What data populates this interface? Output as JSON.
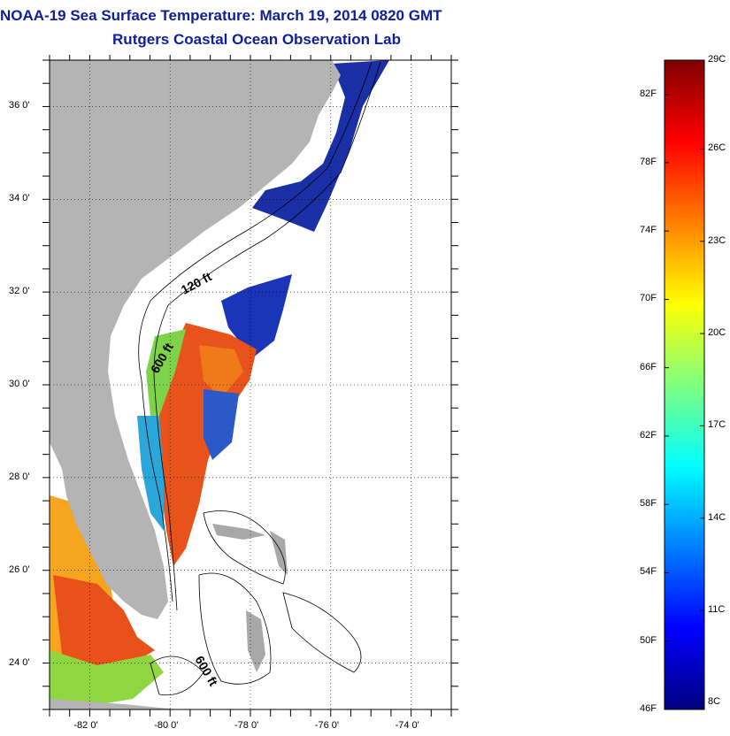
{
  "title": "NOAA-19 Sea Surface Temperature:  March 19, 2014 0820 GMT",
  "subtitle": "Rutgers Coastal Ocean Observation Lab",
  "map": {
    "lon_range": [
      -83,
      -73
    ],
    "lat_range": [
      23,
      37
    ],
    "lon_ticks": [
      {
        "value": -82,
        "label": "-82 0'"
      },
      {
        "value": -80,
        "label": "-80 0'"
      },
      {
        "value": -78,
        "label": "-78 0'"
      },
      {
        "value": -76,
        "label": "-76 0'"
      },
      {
        "value": -74,
        "label": "-74 0'"
      }
    ],
    "lat_ticks": [
      {
        "value": 36,
        "label": "36 0'"
      },
      {
        "value": 34,
        "label": "34 0'"
      },
      {
        "value": 32,
        "label": "32 0'"
      },
      {
        "value": 30,
        "label": "30 0'"
      },
      {
        "value": 28,
        "label": "28 0'"
      },
      {
        "value": 26,
        "label": "26 0'"
      },
      {
        "value": 24,
        "label": "24 0'"
      }
    ],
    "contour_labels": [
      "120 ft",
      "600 ft",
      "600 ft"
    ],
    "land_color": "#b4b4b4",
    "grid": true
  },
  "colorbar": {
    "range_f": [
      46,
      84
    ],
    "range_c": [
      8,
      29
    ],
    "f_labels": [
      "82F",
      "78F",
      "74F",
      "70F",
      "66F",
      "62F",
      "58F",
      "54F",
      "50F",
      "46F"
    ],
    "c_labels": [
      "29C",
      "26C",
      "23C",
      "20C",
      "17C",
      "14C",
      "11C",
      "8C"
    ]
  }
}
